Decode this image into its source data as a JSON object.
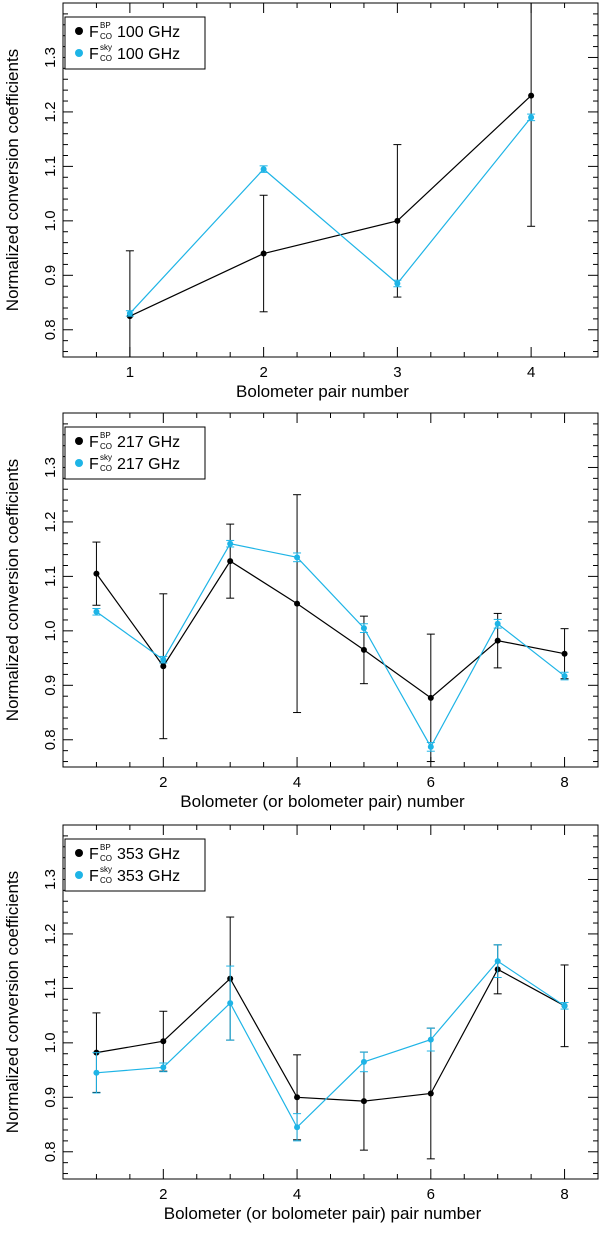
{
  "chart_data": [
    {
      "type": "line",
      "xlabel": "Bolometer pair number",
      "ylabel": "Normalized conversion coefficients",
      "xlim": [
        0.5,
        4.5
      ],
      "ylim": [
        0.75,
        1.4
      ],
      "x_ticks": [
        1,
        2,
        3,
        4
      ],
      "y_ticks": [
        0.8,
        0.9,
        1.0,
        1.1,
        1.2,
        1.3
      ],
      "y_tick_labels": [
        "0.8",
        "0.9",
        "1.0",
        "1.1",
        "1.2",
        "1.3"
      ],
      "legend_position": "top-left",
      "series": [
        {
          "legend": {
            "base": "F",
            "sup": "BP",
            "sub": "CO",
            "text": "100 GHz"
          },
          "color": "#000000",
          "x": [
            1,
            2,
            3,
            4
          ],
          "y": [
            0.825,
            0.94,
            1.0,
            1.23
          ],
          "err": [
            0.12,
            0.107,
            0.14,
            0.24
          ]
        },
        {
          "legend": {
            "base": "F",
            "sup": "sky",
            "sub": "CO",
            "text": "100 GHz"
          },
          "color": "#1eb4e6",
          "x": [
            1,
            2,
            3,
            4
          ],
          "y": [
            0.83,
            1.095,
            0.885,
            1.19
          ],
          "err": [
            0.005,
            0.006,
            0.006,
            0.006
          ]
        }
      ]
    },
    {
      "type": "line",
      "xlabel": "Bolometer (or bolometer pair) number",
      "ylabel": "Normalized conversion coefficients",
      "xlim": [
        0.5,
        8.5
      ],
      "ylim": [
        0.75,
        1.4
      ],
      "x_ticks": [
        2,
        4,
        6,
        8
      ],
      "y_ticks": [
        0.8,
        0.9,
        1.0,
        1.1,
        1.2,
        1.3
      ],
      "y_tick_labels": [
        "0.8",
        "0.9",
        "1.0",
        "1.1",
        "1.2",
        "1.3"
      ],
      "legend_position": "top-left",
      "series": [
        {
          "legend": {
            "base": "F",
            "sup": "BP",
            "sub": "CO",
            "text": "217 GHz"
          },
          "color": "#000000",
          "x": [
            1,
            2,
            3,
            4,
            5,
            6,
            7,
            8
          ],
          "y": [
            1.105,
            0.935,
            1.128,
            1.05,
            0.965,
            0.877,
            0.982,
            0.958
          ],
          "err": [
            0.058,
            0.133,
            0.068,
            0.2,
            0.062,
            0.117,
            0.05,
            0.046
          ]
        },
        {
          "legend": {
            "base": "F",
            "sup": "sky",
            "sub": "CO",
            "text": "217 GHz"
          },
          "color": "#1eb4e6",
          "x": [
            1,
            2,
            3,
            4,
            5,
            6,
            7,
            8
          ],
          "y": [
            1.035,
            0.947,
            1.16,
            1.135,
            1.005,
            0.787,
            1.013,
            0.917
          ],
          "err": [
            0.006,
            0.006,
            0.006,
            0.008,
            0.008,
            0.008,
            0.008,
            0.007
          ]
        }
      ]
    },
    {
      "type": "line",
      "xlabel": "Bolometer (or bolometer pair) pair number",
      "ylabel": "Normalized conversion coefficients",
      "xlim": [
        0.5,
        8.5
      ],
      "ylim": [
        0.75,
        1.4
      ],
      "x_ticks": [
        2,
        4,
        6,
        8
      ],
      "y_ticks": [
        0.8,
        0.9,
        1.0,
        1.1,
        1.2,
        1.3
      ],
      "y_tick_labels": [
        "0.8",
        "0.9",
        "1.0",
        "1.1",
        "1.2",
        "1.3"
      ],
      "legend_position": "top-left",
      "series": [
        {
          "legend": {
            "base": "F",
            "sup": "BP",
            "sub": "CO",
            "text": "353 GHz"
          },
          "color": "#000000",
          "x": [
            1,
            2,
            3,
            4,
            5,
            6,
            7,
            8
          ],
          "y": [
            0.982,
            1.003,
            1.118,
            0.9,
            0.893,
            0.907,
            1.135,
            1.068
          ],
          "err": [
            0.073,
            0.055,
            0.113,
            0.078,
            0.09,
            0.12,
            0.045,
            0.075
          ]
        },
        {
          "legend": {
            "base": "F",
            "sup": "sky",
            "sub": "CO",
            "text": "353 GHz"
          },
          "color": "#1eb4e6",
          "x": [
            1,
            2,
            3,
            4,
            5,
            6,
            7,
            8
          ],
          "y": [
            0.945,
            0.955,
            1.073,
            0.845,
            0.965,
            1.006,
            1.15,
            1.068
          ],
          "err": [
            0.037,
            0.008,
            0.068,
            0.025,
            0.018,
            0.021,
            0.03,
            0.006
          ]
        }
      ]
    }
  ]
}
